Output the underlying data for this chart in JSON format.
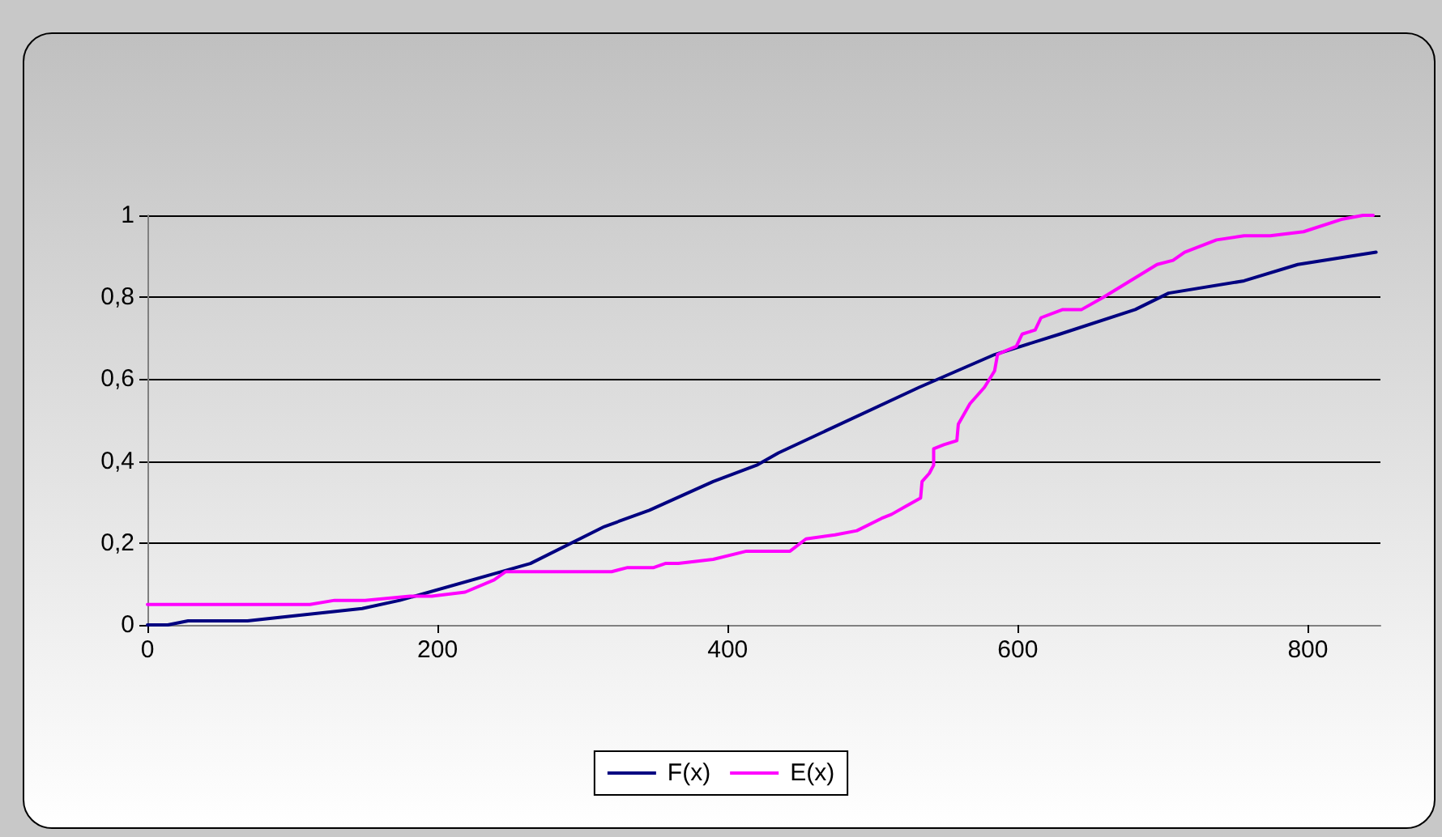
{
  "chart_data": {
    "type": "line",
    "xlim": [
      0,
      850
    ],
    "xticks": [
      0,
      200,
      400,
      600,
      800
    ],
    "ylim": [
      0,
      1
    ],
    "yticks": [
      {
        "value": 0,
        "label": "0"
      },
      {
        "value": 0.2,
        "label": "0,2"
      },
      {
        "value": 0.4,
        "label": "0,4"
      },
      {
        "value": 0.6,
        "label": "0,6"
      },
      {
        "value": 0.8,
        "label": "0,8"
      },
      {
        "value": 1,
        "label": "1"
      }
    ],
    "grid": "y",
    "legend": "bottom",
    "marker": "none",
    "line_style": "solid",
    "series": [
      {
        "name": "F(x)",
        "color": "#000080",
        "x": [
          0,
          14,
          28,
          69,
          148,
          174,
          264,
          315,
          346,
          390,
          420,
          435,
          532,
          584,
          629,
          681,
          704,
          756,
          793,
          847
        ],
        "values": [
          0,
          0,
          0.01,
          0.01,
          0.04,
          0.06,
          0.15,
          0.24,
          0.28,
          0.35,
          0.39,
          0.42,
          0.58,
          0.66,
          0.71,
          0.77,
          0.81,
          0.84,
          0.88,
          0.91
        ]
      },
      {
        "name": "E(x)",
        "color": "#ff00ff",
        "x": [
          0,
          12,
          27,
          112,
          129,
          150,
          181,
          196,
          219,
          239,
          247,
          264,
          273,
          320,
          331,
          349,
          357,
          366,
          390,
          413,
          431,
          443,
          454,
          474,
          489,
          506,
          513,
          523,
          533,
          534,
          539,
          542,
          542,
          549,
          558,
          559,
          567,
          577,
          584,
          586,
          592,
          599,
          603,
          612,
          616,
          631,
          644,
          659,
          696,
          707,
          715,
          737,
          756,
          774,
          797,
          823,
          838,
          845
        ],
        "values": [
          0.05,
          0.05,
          0.05,
          0.05,
          0.06,
          0.06,
          0.07,
          0.07,
          0.08,
          0.11,
          0.13,
          0.13,
          0.13,
          0.13,
          0.14,
          0.14,
          0.15,
          0.15,
          0.16,
          0.18,
          0.18,
          0.18,
          0.21,
          0.22,
          0.23,
          0.26,
          0.27,
          0.29,
          0.31,
          0.35,
          0.37,
          0.39,
          0.43,
          0.44,
          0.45,
          0.49,
          0.54,
          0.58,
          0.62,
          0.66,
          0.67,
          0.68,
          0.71,
          0.72,
          0.75,
          0.77,
          0.77,
          0.8,
          0.88,
          0.89,
          0.91,
          0.94,
          0.95,
          0.95,
          0.96,
          0.99,
          1,
          1
        ]
      }
    ]
  }
}
